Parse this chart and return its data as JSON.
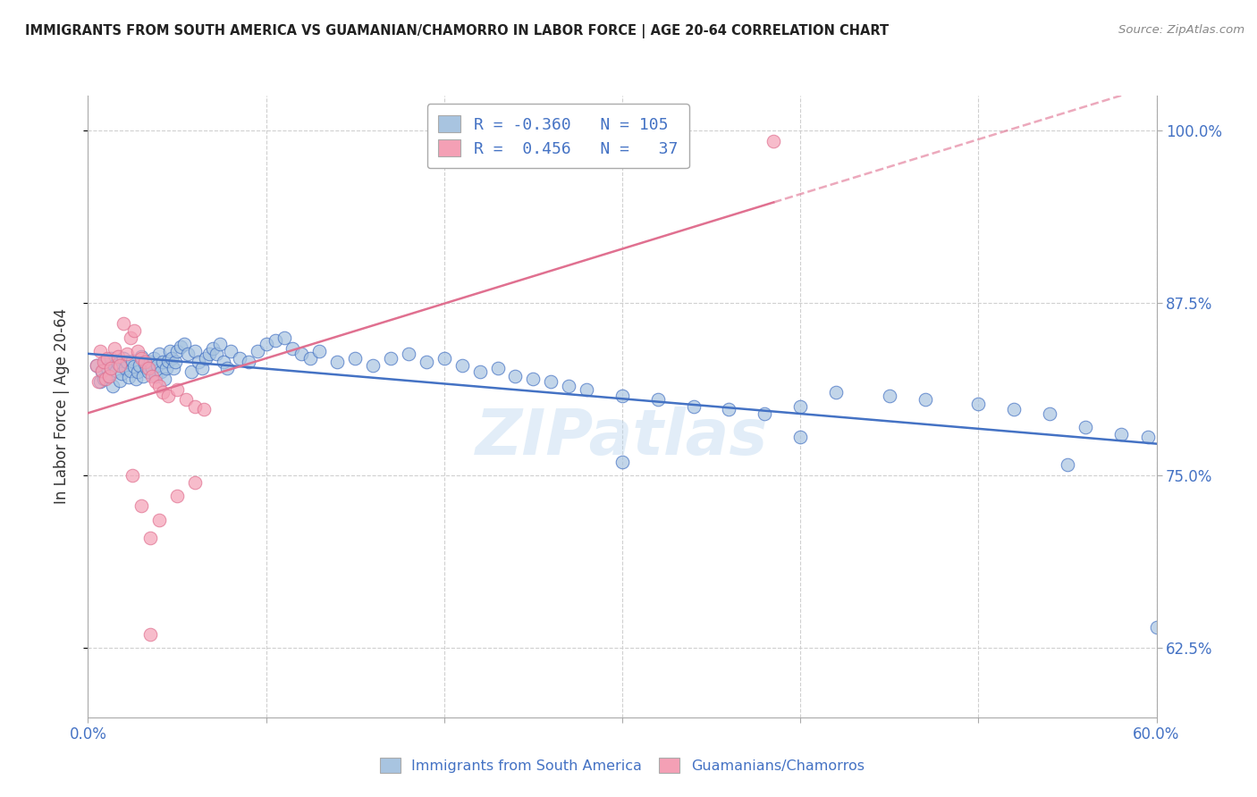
{
  "title": "IMMIGRANTS FROM SOUTH AMERICA VS GUAMANIAN/CHAMORRO IN LABOR FORCE | AGE 20-64 CORRELATION CHART",
  "source": "Source: ZipAtlas.com",
  "ylabel": "In Labor Force | Age 20-64",
  "x_min": 0.0,
  "x_max": 0.6,
  "y_min": 0.575,
  "y_max": 1.025,
  "y_ticks": [
    0.625,
    0.75,
    0.875,
    1.0
  ],
  "y_tick_labels": [
    "62.5%",
    "75.0%",
    "87.5%",
    "100.0%"
  ],
  "x_ticks": [
    0.0,
    0.1,
    0.2,
    0.3,
    0.4,
    0.5,
    0.6
  ],
  "x_tick_labels": [
    "0.0%",
    "",
    "",
    "",
    "",
    "",
    "60.0%"
  ],
  "legend_labels": [
    "Immigrants from South America",
    "Guamanians/Chamorros"
  ],
  "blue_R": -0.36,
  "blue_N": 105,
  "pink_R": 0.456,
  "pink_N": 37,
  "blue_color": "#a8c4e0",
  "pink_color": "#f4a0b5",
  "blue_line_color": "#4472c4",
  "pink_line_color": "#e07090",
  "watermark": "ZIPatlas",
  "blue_scatter_x": [
    0.005,
    0.007,
    0.008,
    0.009,
    0.01,
    0.011,
    0.012,
    0.013,
    0.014,
    0.015,
    0.016,
    0.017,
    0.018,
    0.019,
    0.02,
    0.021,
    0.022,
    0.023,
    0.024,
    0.025,
    0.026,
    0.027,
    0.028,
    0.029,
    0.03,
    0.031,
    0.032,
    0.033,
    0.034,
    0.035,
    0.036,
    0.037,
    0.038,
    0.039,
    0.04,
    0.041,
    0.042,
    0.043,
    0.044,
    0.045,
    0.046,
    0.047,
    0.048,
    0.049,
    0.05,
    0.052,
    0.054,
    0.056,
    0.058,
    0.06,
    0.062,
    0.064,
    0.066,
    0.068,
    0.07,
    0.072,
    0.074,
    0.076,
    0.078,
    0.08,
    0.085,
    0.09,
    0.095,
    0.1,
    0.105,
    0.11,
    0.115,
    0.12,
    0.125,
    0.13,
    0.14,
    0.15,
    0.16,
    0.17,
    0.18,
    0.19,
    0.2,
    0.21,
    0.22,
    0.23,
    0.24,
    0.25,
    0.26,
    0.27,
    0.28,
    0.3,
    0.32,
    0.34,
    0.36,
    0.38,
    0.4,
    0.42,
    0.45,
    0.47,
    0.5,
    0.52,
    0.54,
    0.56,
    0.58,
    0.595,
    0.6,
    0.3,
    0.4,
    0.55
  ],
  "blue_scatter_y": [
    0.83,
    0.818,
    0.825,
    0.82,
    0.832,
    0.828,
    0.822,
    0.835,
    0.815,
    0.83,
    0.826,
    0.831,
    0.819,
    0.824,
    0.835,
    0.828,
    0.832,
    0.821,
    0.826,
    0.833,
    0.829,
    0.82,
    0.825,
    0.83,
    0.836,
    0.822,
    0.831,
    0.828,
    0.825,
    0.832,
    0.828,
    0.835,
    0.822,
    0.83,
    0.838,
    0.825,
    0.832,
    0.82,
    0.828,
    0.833,
    0.84,
    0.835,
    0.828,
    0.832,
    0.84,
    0.843,
    0.845,
    0.838,
    0.825,
    0.84,
    0.832,
    0.828,
    0.835,
    0.838,
    0.842,
    0.838,
    0.845,
    0.832,
    0.828,
    0.84,
    0.835,
    0.832,
    0.84,
    0.845,
    0.848,
    0.85,
    0.842,
    0.838,
    0.835,
    0.84,
    0.832,
    0.835,
    0.83,
    0.835,
    0.838,
    0.832,
    0.835,
    0.83,
    0.825,
    0.828,
    0.822,
    0.82,
    0.818,
    0.815,
    0.812,
    0.808,
    0.805,
    0.8,
    0.798,
    0.795,
    0.8,
    0.81,
    0.808,
    0.805,
    0.802,
    0.798,
    0.795,
    0.785,
    0.78,
    0.778,
    0.64,
    0.76,
    0.778,
    0.758
  ],
  "pink_scatter_x": [
    0.005,
    0.006,
    0.007,
    0.008,
    0.009,
    0.01,
    0.011,
    0.012,
    0.013,
    0.015,
    0.017,
    0.018,
    0.02,
    0.022,
    0.024,
    0.026,
    0.028,
    0.03,
    0.032,
    0.034,
    0.036,
    0.038,
    0.04,
    0.042,
    0.045,
    0.05,
    0.055,
    0.06,
    0.065,
    0.025,
    0.03,
    0.035,
    0.04,
    0.05,
    0.06,
    0.385,
    0.035
  ],
  "pink_scatter_y": [
    0.83,
    0.818,
    0.84,
    0.826,
    0.832,
    0.82,
    0.835,
    0.822,
    0.828,
    0.842,
    0.836,
    0.83,
    0.86,
    0.838,
    0.85,
    0.855,
    0.84,
    0.835,
    0.832,
    0.828,
    0.822,
    0.818,
    0.815,
    0.81,
    0.808,
    0.812,
    0.805,
    0.8,
    0.798,
    0.75,
    0.728,
    0.705,
    0.718,
    0.735,
    0.745,
    0.992,
    0.635
  ],
  "pink_line_extent": [
    0.0,
    0.385
  ],
  "pink_line_dashed_extent": [
    0.385,
    0.6
  ]
}
